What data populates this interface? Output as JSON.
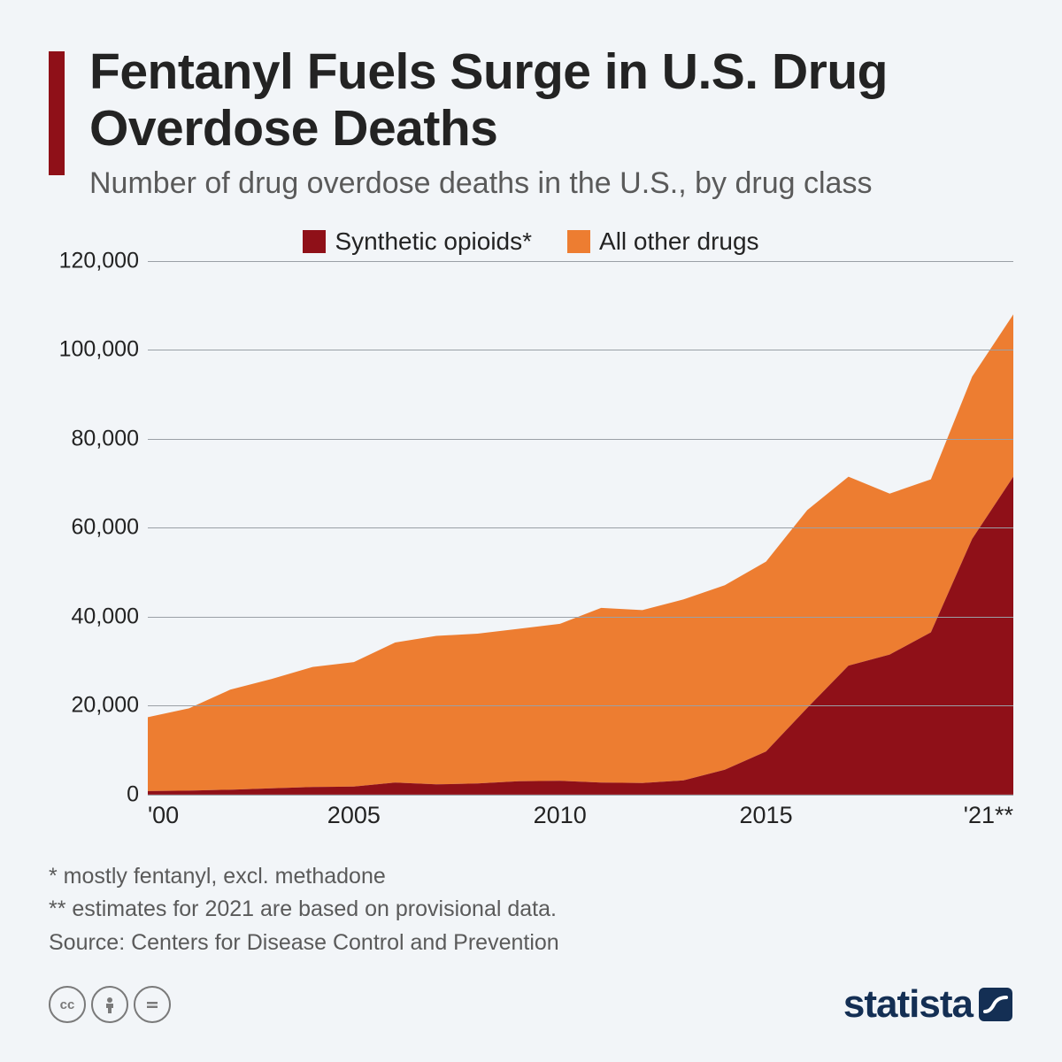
{
  "header": {
    "title": "Fentanyl Fuels Surge in U.S. Drug Overdose Deaths",
    "subtitle": "Number of drug overdose deaths in the U.S., by drug class",
    "accent_color": "#8f1018"
  },
  "legend": {
    "items": [
      {
        "label": "Synthetic opioids*",
        "color": "#8f1018"
      },
      {
        "label": "All other drugs",
        "color": "#ed7d31"
      }
    ]
  },
  "chart": {
    "type": "stacked-area",
    "background_color": "#f2f5f8",
    "grid_color": "#9aa0a6",
    "ylim": [
      0,
      120000
    ],
    "ytick_step": 20000,
    "y_ticks": [
      0,
      20000,
      40000,
      60000,
      80000,
      100000,
      120000
    ],
    "y_tick_labels": [
      "0",
      "20,000",
      "40,000",
      "60,000",
      "80,000",
      "100,000",
      "120,000"
    ],
    "x_years": [
      2000,
      2001,
      2002,
      2003,
      2004,
      2005,
      2006,
      2007,
      2008,
      2009,
      2010,
      2011,
      2012,
      2013,
      2014,
      2015,
      2016,
      2017,
      2018,
      2019,
      2020,
      2021
    ],
    "x_ticks": [
      2000,
      2005,
      2010,
      2015,
      2021
    ],
    "x_tick_labels": [
      "'00",
      "2005",
      "2010",
      "2015",
      "'21**"
    ],
    "series": {
      "synthetic_opioids": {
        "color": "#8f1018",
        "values": [
          800,
          900,
          1100,
          1400,
          1700,
          1800,
          2700,
          2300,
          2500,
          3000,
          3100,
          2700,
          2600,
          3200,
          5600,
          9700,
          19500,
          29000,
          31500,
          36500,
          57500,
          71500
        ]
      },
      "all_other_drugs": {
        "color": "#ed7d31",
        "values": [
          16600,
          18500,
          22500,
          24600,
          27000,
          28000,
          31500,
          33400,
          33700,
          34300,
          35300,
          39300,
          38900,
          40700,
          41500,
          42700,
          44500,
          42500,
          36200,
          34400,
          36500,
          36500
        ]
      }
    },
    "label_fontsize": 25,
    "title_fontsize": 57
  },
  "footnotes": {
    "line1": "*   mostly fentanyl, excl. methadone",
    "line2": "** estimates for 2021 are based on provisional data.",
    "source": "Source: Centers for Disease Control and Prevention"
  },
  "footer": {
    "brand": "statista",
    "brand_color": "#142f54",
    "icon_color": "#7a7a7a"
  }
}
